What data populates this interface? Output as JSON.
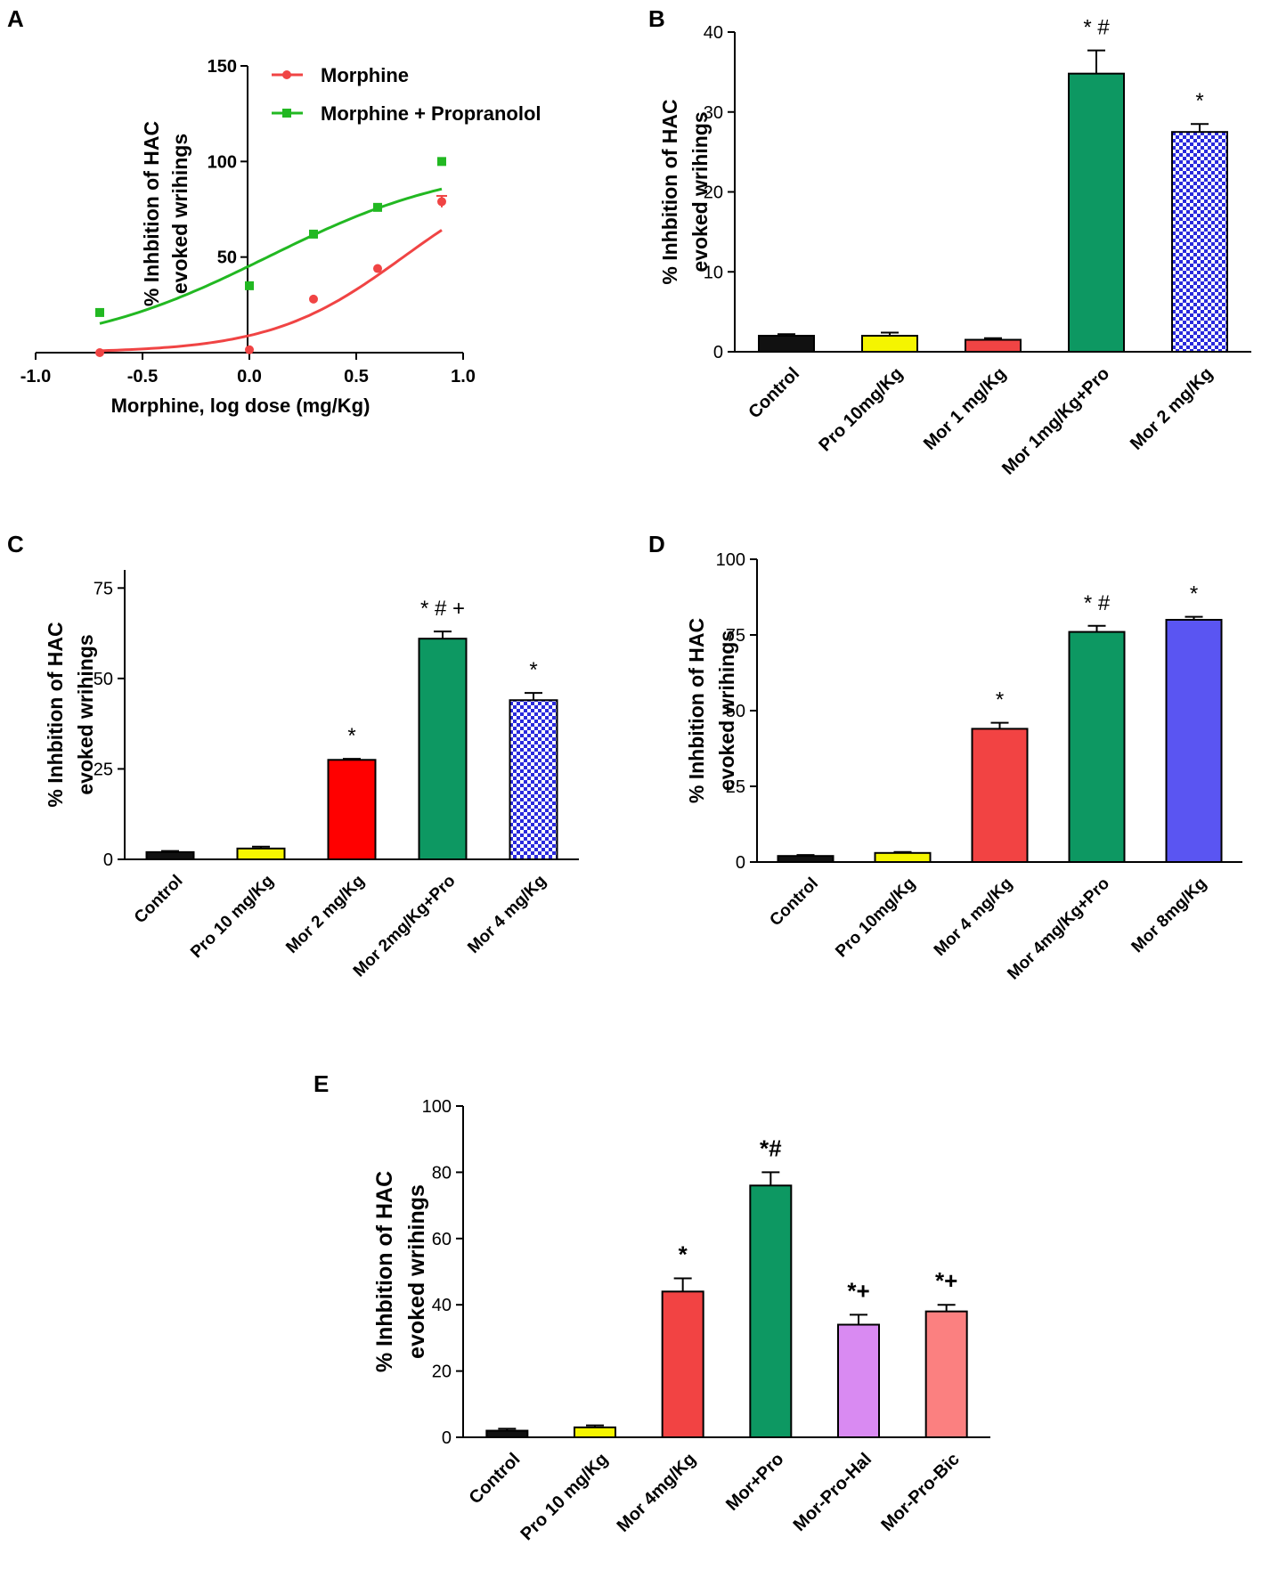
{
  "figure": {
    "panels": [
      "A",
      "B",
      "C",
      "D",
      "E"
    ]
  },
  "colors": {
    "axis": "#000000",
    "morphine": "#f04444",
    "combo": "#22b822",
    "black": "#111111",
    "yellow": "#f5f500",
    "red": "#ff0000",
    "red_light": "#f24343",
    "green": "#0d9862",
    "checker": "#2a2adc",
    "blue": "#5a55f2",
    "violet": "#d98af2",
    "pink": "#fb8080"
  },
  "chart_data": [
    {
      "id": "A",
      "type": "scatter",
      "title": "",
      "xlabel": "Morphine, log dose (mg/Kg)",
      "ylabel": [
        "% Inhbition of HAC",
        "evoked wrihings"
      ],
      "xlim": [
        -1.0,
        1.0
      ],
      "ylim": [
        0,
        150
      ],
      "xticks": [
        -1.0,
        -0.5,
        0.0,
        0.5,
        1.0
      ],
      "xtick_labels": [
        "-1.0",
        "-0.5",
        "0.0",
        "0.5",
        "1.0"
      ],
      "yticks": [
        50,
        100,
        150
      ],
      "ytick_labels": [
        "50",
        "100",
        "150"
      ],
      "legend_position": "top-right",
      "series": [
        {
          "name": "Morphine",
          "color": "#f04444",
          "marker": "circle",
          "x": [
            -0.7,
            0.0,
            0.3,
            0.6,
            0.9
          ],
          "y": [
            0,
            1.5,
            28,
            44,
            79
          ],
          "err": [
            0,
            0,
            0,
            0,
            3
          ],
          "fit": {
            "bottom": 0,
            "top": 100,
            "logEC50": 0.72,
            "hill": 1.4
          }
        },
        {
          "name": "Morphine + Propranolol",
          "color": "#22b822",
          "marker": "square",
          "x": [
            -0.7,
            0.0,
            0.3,
            0.6,
            0.9
          ],
          "y": [
            21,
            35,
            62,
            76,
            100
          ],
          "err": [
            0,
            0,
            0,
            0,
            0
          ],
          "fit": {
            "bottom": 0,
            "top": 100,
            "logEC50": 0.085,
            "hill": 0.95
          }
        }
      ]
    },
    {
      "id": "B",
      "type": "bar",
      "title": "",
      "xlabel": "",
      "ylabel": [
        "% Inhbition of HAC",
        "evoked wrihings"
      ],
      "ylim": [
        0,
        40
      ],
      "yticks": [
        0,
        10,
        20,
        30,
        40
      ],
      "categories": [
        "Control",
        "Pro 10mg/Kg",
        "Mor 1 mg/Kg",
        "Mor 1mg/Kg+Pro",
        "Mor 2 mg/Kg"
      ],
      "values": [
        2,
        2,
        1.5,
        34.8,
        27.5
      ],
      "errors": [
        0.2,
        0.4,
        0.2,
        2.9,
        1.0
      ],
      "colors": [
        "#111111",
        "#f5f500",
        "#f04444",
        "#0d9862",
        "checker"
      ],
      "annotations": [
        "",
        "",
        "",
        "* #",
        "*"
      ]
    },
    {
      "id": "C",
      "type": "bar",
      "title": "",
      "xlabel": "",
      "ylabel": [
        "% Inhbition of HAC",
        "evoked wrihings"
      ],
      "ylim": [
        0,
        80
      ],
      "yticks": [
        0,
        25,
        50,
        75
      ],
      "categories": [
        "Control",
        "Pro 10 mg/Kg",
        "Mor 2 mg/Kg",
        "Mor 2mg/Kg+Pro",
        "Mor  4 mg/Kg"
      ],
      "values": [
        2,
        3,
        27.5,
        61,
        44
      ],
      "errors": [
        0.3,
        0.5,
        0.3,
        2,
        2
      ],
      "colors": [
        "#111111",
        "#f5f500",
        "#ff0000",
        "#0d9862",
        "checker"
      ],
      "annotations": [
        "",
        "",
        "*",
        "* # +",
        "*"
      ]
    },
    {
      "id": "D",
      "type": "bar",
      "title": "",
      "xlabel": "",
      "ylabel": [
        "% Inhbition of HAC",
        "evoked wrihings"
      ],
      "ylim": [
        0,
        100
      ],
      "yticks": [
        0,
        25,
        50,
        75,
        100
      ],
      "categories": [
        "Control",
        "Pro 10mg/Kg",
        "Mor  4 mg/Kg",
        "Mor 4mg/Kg+Pro",
        "Mor 8mg/Kg"
      ],
      "values": [
        2,
        3,
        44,
        76,
        80
      ],
      "errors": [
        0.3,
        0.3,
        2,
        2,
        1
      ],
      "colors": [
        "#111111",
        "#f5f500",
        "#f24343",
        "#0d9862",
        "#5a55f2"
      ],
      "annotations": [
        "",
        "",
        "*",
        "* #",
        "*"
      ]
    },
    {
      "id": "E",
      "type": "bar",
      "title": "",
      "xlabel": "",
      "ylabel": [
        "% Inhbition of HAC",
        "evoked wrihings"
      ],
      "ylim": [
        0,
        100
      ],
      "yticks": [
        0,
        20,
        40,
        60,
        80,
        100
      ],
      "categories": [
        "Control",
        "Pro 10 mg/Kg",
        "Mor 4mg/Kg",
        "Mor+Pro",
        "Mor-Pro-Hal",
        "Mor-Pro-Bic"
      ],
      "values": [
        2,
        3,
        44,
        76,
        34,
        38
      ],
      "errors": [
        0.6,
        0.6,
        4,
        4,
        3,
        2
      ],
      "colors": [
        "#111111",
        "#f5f500",
        "#f24343",
        "#0d9862",
        "#d98af2",
        "#fb8080"
      ],
      "annotations": [
        "",
        "",
        "*",
        "*#",
        "*+",
        "*+"
      ]
    }
  ]
}
